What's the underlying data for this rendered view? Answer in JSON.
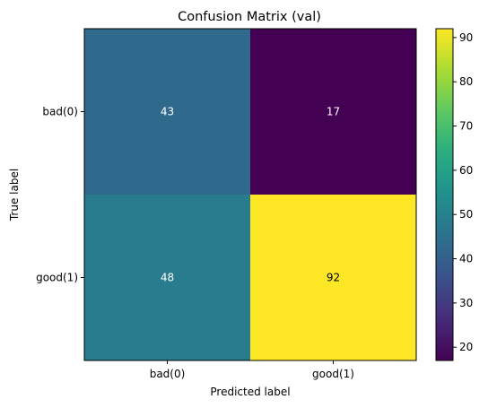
{
  "chart_data": {
    "type": "heatmap",
    "title": "Confusion Matrix (val)",
    "xlabel": "Predicted label",
    "ylabel": "True label",
    "x_categories": [
      "bad(0)",
      "good(1)"
    ],
    "y_categories": [
      "bad(0)",
      "good(1)"
    ],
    "values": [
      [
        43,
        17
      ],
      [
        48,
        92
      ]
    ],
    "colormap": "viridis",
    "colorbar": {
      "range": [
        17,
        92
      ],
      "ticks": [
        20,
        30,
        40,
        50,
        60,
        70,
        80,
        90
      ]
    },
    "label_colors": {
      "dark": "#000000",
      "light": "#ffffff"
    }
  }
}
